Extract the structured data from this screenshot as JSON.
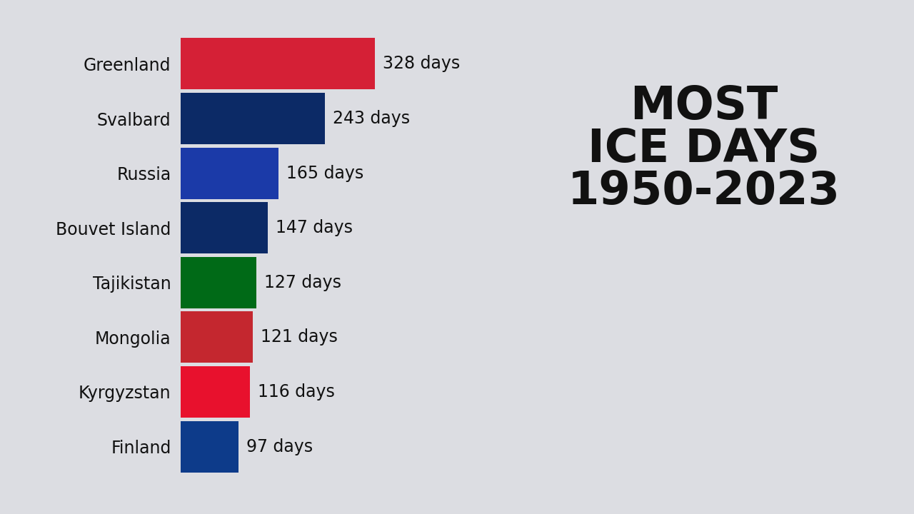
{
  "chart_data": {
    "type": "bar",
    "orientation": "horizontal",
    "title": "MOST\nICE DAYS\n1950-2023",
    "categories": [
      "Greenland",
      "Svalbard",
      "Russia",
      "Bouvet Island",
      "Tajikistan",
      "Mongolia",
      "Kyrgyzstan",
      "Finland"
    ],
    "values": [
      328,
      243,
      165,
      147,
      127,
      121,
      116,
      97
    ],
    "value_labels": [
      "328 days",
      "243 days",
      "165 days",
      "147 days",
      "127 days",
      "121 days",
      "116 days",
      "97 days"
    ],
    "colors": [
      "#d52036",
      "#0c2a66",
      "#1b3aa8",
      "#0c2a66",
      "#006a17",
      "#c4272f",
      "#e8112d",
      "#0d3b8a"
    ],
    "xlim": [
      0,
      420
    ],
    "data_labels": true,
    "tick_labels": "y",
    "grid": false
  }
}
